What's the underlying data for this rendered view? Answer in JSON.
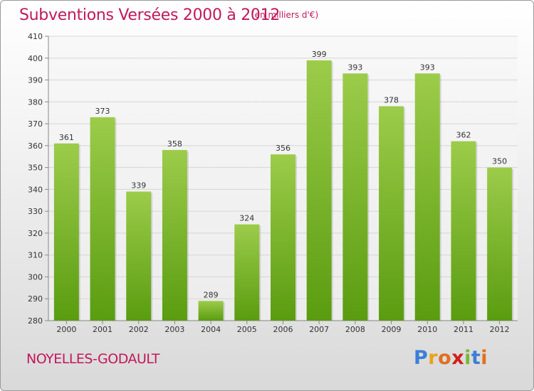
{
  "chart_data": {
    "type": "bar",
    "title": "Subventions Versées 2000 à 2012",
    "subtitle": "(en milliers d'€)",
    "categories": [
      "2000",
      "2001",
      "2002",
      "2003",
      "2004",
      "2005",
      "2006",
      "2007",
      "2008",
      "2009",
      "2010",
      "2011",
      "2012"
    ],
    "values": [
      361,
      373,
      339,
      358,
      289,
      324,
      356,
      399,
      393,
      378,
      393,
      362,
      350
    ],
    "ylim": [
      280,
      410
    ],
    "yticks": [
      280,
      290,
      300,
      310,
      320,
      330,
      340,
      350,
      360,
      370,
      380,
      390,
      400,
      410
    ],
    "grid": true,
    "bar_color_top": "#9ccc4a",
    "bar_color_bottom": "#5a9c10"
  },
  "place_name": "NOYELLES-GODAULT",
  "logo": {
    "letters": [
      "P",
      "r",
      "o",
      "x",
      "i",
      "t",
      "i"
    ],
    "colors": [
      "#3b7fd6",
      "#e8a317",
      "#e07020",
      "#d0201a",
      "#79b83a",
      "#3b7fd6",
      "#e07020"
    ]
  }
}
